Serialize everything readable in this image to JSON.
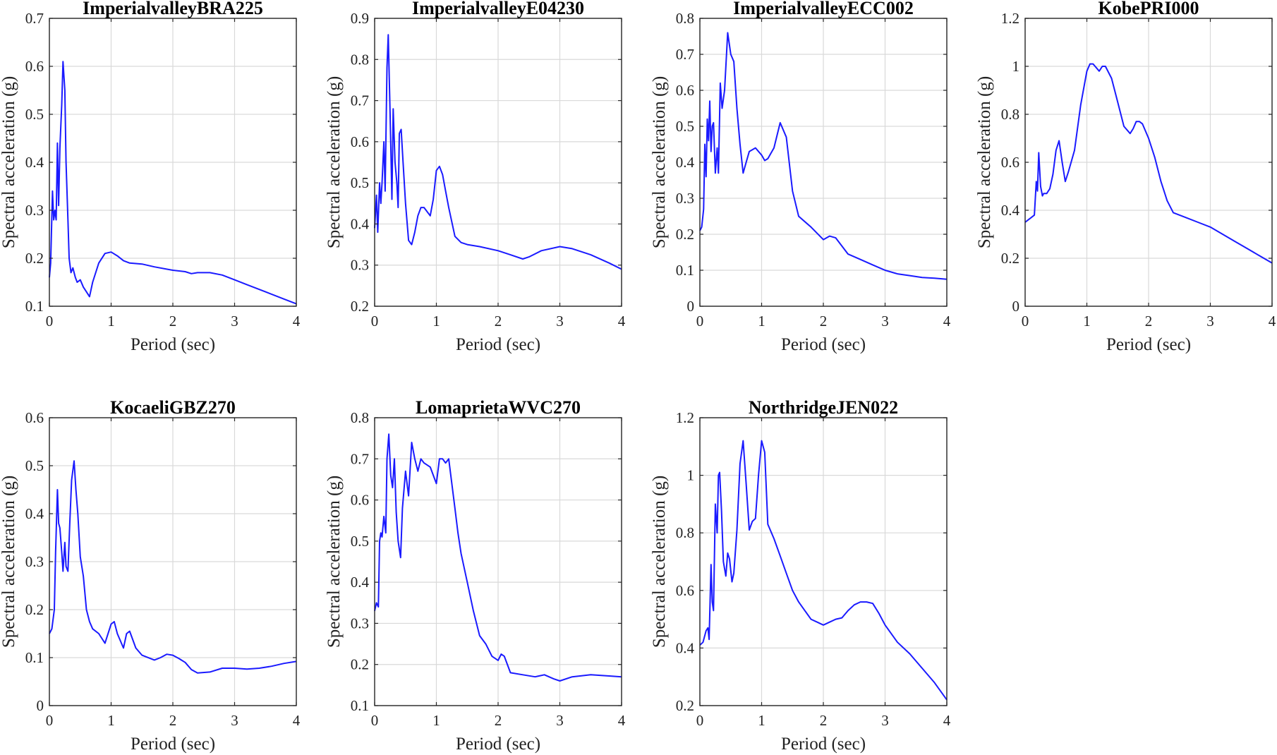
{
  "chart_data": [
    {
      "type": "line",
      "title": "ImperialvalleyBRA225",
      "xlabel": "Period (sec)",
      "ylabel": "Spectral acceleration (g)",
      "xlim": [
        0,
        4
      ],
      "ylim": [
        0.1,
        0.7
      ],
      "xticks": [
        "0",
        "1",
        "2",
        "3",
        "4"
      ],
      "yticks": [
        "0.1",
        "0.2",
        "0.3",
        "0.4",
        "0.5",
        "0.6",
        "0.7"
      ],
      "grid": true,
      "color": "#1a1aff",
      "x": [
        0,
        0.02,
        0.05,
        0.07,
        0.09,
        0.11,
        0.13,
        0.15,
        0.17,
        0.2,
        0.22,
        0.25,
        0.27,
        0.3,
        0.32,
        0.35,
        0.38,
        0.42,
        0.45,
        0.5,
        0.55,
        0.6,
        0.65,
        0.7,
        0.8,
        0.9,
        1.0,
        1.1,
        1.2,
        1.3,
        1.5,
        1.7,
        2.0,
        2.2,
        2.3,
        2.4,
        2.6,
        2.8,
        3.0,
        3.2,
        3.5,
        3.8,
        4.0
      ],
      "values": [
        0.16,
        0.19,
        0.34,
        0.28,
        0.3,
        0.28,
        0.44,
        0.31,
        0.43,
        0.52,
        0.61,
        0.55,
        0.4,
        0.28,
        0.2,
        0.17,
        0.18,
        0.16,
        0.15,
        0.155,
        0.14,
        0.13,
        0.12,
        0.15,
        0.19,
        0.21,
        0.213,
        0.205,
        0.195,
        0.19,
        0.188,
        0.182,
        0.175,
        0.172,
        0.168,
        0.17,
        0.17,
        0.165,
        0.155,
        0.145,
        0.13,
        0.115,
        0.105
      ]
    },
    {
      "type": "line",
      "title": "ImperialvalleyE04230",
      "xlabel": "Period (sec)",
      "ylabel": "Spectral acceleration (g)",
      "xlim": [
        0,
        4
      ],
      "ylim": [
        0.2,
        0.9
      ],
      "xticks": [
        "0",
        "1",
        "2",
        "3",
        "4"
      ],
      "yticks": [
        "0.2",
        "0.3",
        "0.4",
        "0.5",
        "0.6",
        "0.7",
        "0.8",
        "0.9"
      ],
      "grid": true,
      "color": "#1a1aff",
      "x": [
        0,
        0.03,
        0.05,
        0.08,
        0.1,
        0.12,
        0.15,
        0.17,
        0.2,
        0.22,
        0.25,
        0.28,
        0.3,
        0.33,
        0.36,
        0.38,
        0.4,
        0.43,
        0.46,
        0.5,
        0.55,
        0.6,
        0.65,
        0.7,
        0.75,
        0.8,
        0.9,
        0.95,
        1.0,
        1.05,
        1.1,
        1.15,
        1.2,
        1.3,
        1.4,
        1.5,
        1.7,
        2.0,
        2.2,
        2.4,
        2.5,
        2.7,
        3.0,
        3.2,
        3.5,
        3.8,
        4.0
      ],
      "values": [
        0.39,
        0.47,
        0.38,
        0.5,
        0.45,
        0.5,
        0.6,
        0.48,
        0.78,
        0.86,
        0.67,
        0.46,
        0.68,
        0.55,
        0.5,
        0.44,
        0.62,
        0.63,
        0.55,
        0.45,
        0.36,
        0.35,
        0.38,
        0.42,
        0.44,
        0.44,
        0.42,
        0.46,
        0.53,
        0.54,
        0.52,
        0.48,
        0.44,
        0.37,
        0.355,
        0.35,
        0.345,
        0.335,
        0.325,
        0.315,
        0.32,
        0.335,
        0.345,
        0.34,
        0.325,
        0.305,
        0.29
      ]
    },
    {
      "type": "line",
      "title": "ImperialvalleyECC002",
      "xlabel": "Period (sec)",
      "ylabel": "Spectral acceleration (g)",
      "xlim": [
        0,
        4
      ],
      "ylim": [
        0,
        0.8
      ],
      "xticks": [
        "0",
        "1",
        "2",
        "3",
        "4"
      ],
      "yticks": [
        "0",
        "0.1",
        "0.2",
        "0.3",
        "0.4",
        "0.5",
        "0.6",
        "0.7",
        "0.8"
      ],
      "grid": true,
      "color": "#1a1aff",
      "x": [
        0,
        0.03,
        0.06,
        0.08,
        0.1,
        0.12,
        0.14,
        0.16,
        0.18,
        0.2,
        0.22,
        0.25,
        0.28,
        0.3,
        0.33,
        0.36,
        0.4,
        0.45,
        0.5,
        0.55,
        0.6,
        0.65,
        0.7,
        0.75,
        0.8,
        0.9,
        1.0,
        1.05,
        1.1,
        1.2,
        1.3,
        1.4,
        1.5,
        1.6,
        1.8,
        2.0,
        2.1,
        2.2,
        2.4,
        2.6,
        2.8,
        3.0,
        3.2,
        3.4,
        3.6,
        3.8,
        4.0
      ],
      "values": [
        0.21,
        0.22,
        0.27,
        0.45,
        0.36,
        0.52,
        0.46,
        0.57,
        0.43,
        0.5,
        0.51,
        0.37,
        0.44,
        0.37,
        0.62,
        0.55,
        0.6,
        0.76,
        0.7,
        0.68,
        0.55,
        0.45,
        0.37,
        0.4,
        0.43,
        0.44,
        0.42,
        0.405,
        0.41,
        0.44,
        0.51,
        0.47,
        0.32,
        0.25,
        0.22,
        0.185,
        0.195,
        0.19,
        0.145,
        0.13,
        0.115,
        0.1,
        0.09,
        0.085,
        0.08,
        0.078,
        0.075
      ]
    },
    {
      "type": "line",
      "title": "KobePRI000",
      "xlabel": "Period (sec)",
      "ylabel": "Spectral acceleration (g)",
      "xlim": [
        0,
        4
      ],
      "ylim": [
        0,
        1.2
      ],
      "xticks": [
        "0",
        "1",
        "2",
        "3",
        "4"
      ],
      "yticks": [
        "0",
        "0.2",
        "0.4",
        "0.6",
        "0.8",
        "1",
        "1.2"
      ],
      "grid": true,
      "color": "#1a1aff",
      "x": [
        0,
        0.05,
        0.1,
        0.15,
        0.18,
        0.2,
        0.22,
        0.25,
        0.28,
        0.3,
        0.35,
        0.4,
        0.45,
        0.5,
        0.55,
        0.6,
        0.65,
        0.7,
        0.8,
        0.9,
        1.0,
        1.05,
        1.1,
        1.2,
        1.25,
        1.3,
        1.4,
        1.5,
        1.6,
        1.7,
        1.75,
        1.8,
        1.85,
        1.9,
        2.0,
        2.1,
        2.2,
        2.3,
        2.4,
        2.6,
        2.8,
        3.0,
        3.2,
        3.4,
        3.6,
        3.8,
        4.0
      ],
      "values": [
        0.35,
        0.36,
        0.37,
        0.38,
        0.52,
        0.48,
        0.64,
        0.5,
        0.46,
        0.47,
        0.47,
        0.49,
        0.55,
        0.65,
        0.69,
        0.6,
        0.52,
        0.56,
        0.65,
        0.84,
        0.98,
        1.01,
        1.01,
        0.98,
        1.0,
        1.0,
        0.95,
        0.85,
        0.75,
        0.72,
        0.74,
        0.77,
        0.77,
        0.76,
        0.7,
        0.62,
        0.52,
        0.44,
        0.39,
        0.37,
        0.35,
        0.33,
        0.3,
        0.27,
        0.24,
        0.21,
        0.18
      ]
    },
    {
      "type": "line",
      "title": "KocaeliGBZ270",
      "xlabel": "Period (sec)",
      "ylabel": "Spectral acceleration (g)",
      "xlim": [
        0,
        4
      ],
      "ylim": [
        0,
        0.6
      ],
      "xticks": [
        "0",
        "1",
        "2",
        "3",
        "4"
      ],
      "yticks": [
        "0",
        "0.1",
        "0.2",
        "0.3",
        "0.4",
        "0.5",
        "0.6"
      ],
      "grid": true,
      "color": "#1a1aff",
      "x": [
        0,
        0.04,
        0.08,
        0.1,
        0.13,
        0.15,
        0.17,
        0.2,
        0.22,
        0.25,
        0.27,
        0.3,
        0.33,
        0.36,
        0.4,
        0.43,
        0.46,
        0.5,
        0.55,
        0.6,
        0.65,
        0.7,
        0.8,
        0.9,
        1.0,
        1.05,
        1.1,
        1.2,
        1.25,
        1.3,
        1.4,
        1.5,
        1.7,
        1.8,
        1.9,
        2.0,
        2.1,
        2.2,
        2.3,
        2.4,
        2.6,
        2.8,
        3.0,
        3.2,
        3.4,
        3.6,
        3.8,
        4.0
      ],
      "values": [
        0.15,
        0.16,
        0.2,
        0.32,
        0.45,
        0.38,
        0.37,
        0.32,
        0.28,
        0.34,
        0.29,
        0.28,
        0.38,
        0.47,
        0.51,
        0.45,
        0.4,
        0.31,
        0.27,
        0.2,
        0.175,
        0.16,
        0.15,
        0.13,
        0.17,
        0.175,
        0.15,
        0.12,
        0.15,
        0.155,
        0.12,
        0.105,
        0.095,
        0.1,
        0.107,
        0.105,
        0.098,
        0.09,
        0.075,
        0.068,
        0.07,
        0.078,
        0.078,
        0.076,
        0.078,
        0.082,
        0.088,
        0.092
      ]
    },
    {
      "type": "line",
      "title": "LomaprietaWVC270",
      "xlabel": "Period (sec)",
      "ylabel": "Spectral acceleration (g)",
      "xlim": [
        0,
        4
      ],
      "ylim": [
        0.1,
        0.8
      ],
      "xticks": [
        "0",
        "1",
        "2",
        "3",
        "4"
      ],
      "yticks": [
        "0.1",
        "0.2",
        "0.3",
        "0.4",
        "0.5",
        "0.6",
        "0.7",
        "0.8"
      ],
      "grid": true,
      "color": "#1a1aff",
      "x": [
        0,
        0.03,
        0.06,
        0.08,
        0.1,
        0.12,
        0.15,
        0.18,
        0.2,
        0.23,
        0.26,
        0.29,
        0.32,
        0.35,
        0.38,
        0.42,
        0.45,
        0.5,
        0.55,
        0.6,
        0.65,
        0.7,
        0.75,
        0.8,
        0.9,
        1.0,
        1.05,
        1.1,
        1.15,
        1.2,
        1.3,
        1.35,
        1.4,
        1.5,
        1.6,
        1.7,
        1.8,
        1.9,
        2.0,
        2.05,
        2.1,
        2.2,
        2.4,
        2.6,
        2.75,
        2.9,
        3.0,
        3.2,
        3.5,
        3.8,
        4.0
      ],
      "values": [
        0.33,
        0.35,
        0.34,
        0.5,
        0.52,
        0.51,
        0.56,
        0.52,
        0.7,
        0.76,
        0.66,
        0.63,
        0.7,
        0.57,
        0.5,
        0.46,
        0.58,
        0.67,
        0.61,
        0.74,
        0.7,
        0.67,
        0.7,
        0.69,
        0.68,
        0.64,
        0.7,
        0.7,
        0.69,
        0.7,
        0.58,
        0.52,
        0.47,
        0.4,
        0.33,
        0.27,
        0.25,
        0.22,
        0.21,
        0.225,
        0.22,
        0.18,
        0.175,
        0.17,
        0.175,
        0.165,
        0.16,
        0.17,
        0.175,
        0.172,
        0.17
      ]
    },
    {
      "type": "line",
      "title": "NorthridgeJEN022",
      "xlabel": "Period (sec)",
      "ylabel": "Spectral acceleration (g)",
      "xlim": [
        0,
        4
      ],
      "ylim": [
        0.2,
        1.2
      ],
      "xticks": [
        "0",
        "1",
        "2",
        "3",
        "4"
      ],
      "yticks": [
        "0.2",
        "0.4",
        "0.6",
        "0.8",
        "1",
        "1.2"
      ],
      "grid": true,
      "color": "#1a1aff",
      "x": [
        0,
        0.05,
        0.1,
        0.13,
        0.15,
        0.18,
        0.2,
        0.22,
        0.25,
        0.28,
        0.3,
        0.32,
        0.35,
        0.38,
        0.42,
        0.45,
        0.48,
        0.52,
        0.55,
        0.6,
        0.65,
        0.7,
        0.75,
        0.8,
        0.85,
        0.9,
        0.95,
        1.0,
        1.05,
        1.1,
        1.2,
        1.3,
        1.4,
        1.5,
        1.6,
        1.7,
        1.8,
        1.9,
        2.0,
        2.1,
        2.2,
        2.3,
        2.4,
        2.5,
        2.6,
        2.7,
        2.8,
        2.9,
        3.0,
        3.2,
        3.4,
        3.6,
        3.8,
        4.0
      ],
      "values": [
        0.41,
        0.42,
        0.46,
        0.47,
        0.43,
        0.69,
        0.56,
        0.53,
        0.9,
        0.8,
        1.0,
        1.01,
        0.88,
        0.7,
        0.65,
        0.73,
        0.71,
        0.63,
        0.66,
        0.81,
        1.04,
        1.12,
        0.97,
        0.81,
        0.84,
        0.85,
        1.0,
        1.12,
        1.08,
        0.83,
        0.78,
        0.72,
        0.66,
        0.6,
        0.56,
        0.53,
        0.5,
        0.49,
        0.48,
        0.49,
        0.5,
        0.505,
        0.53,
        0.55,
        0.56,
        0.56,
        0.555,
        0.52,
        0.48,
        0.42,
        0.38,
        0.33,
        0.28,
        0.22
      ]
    }
  ]
}
